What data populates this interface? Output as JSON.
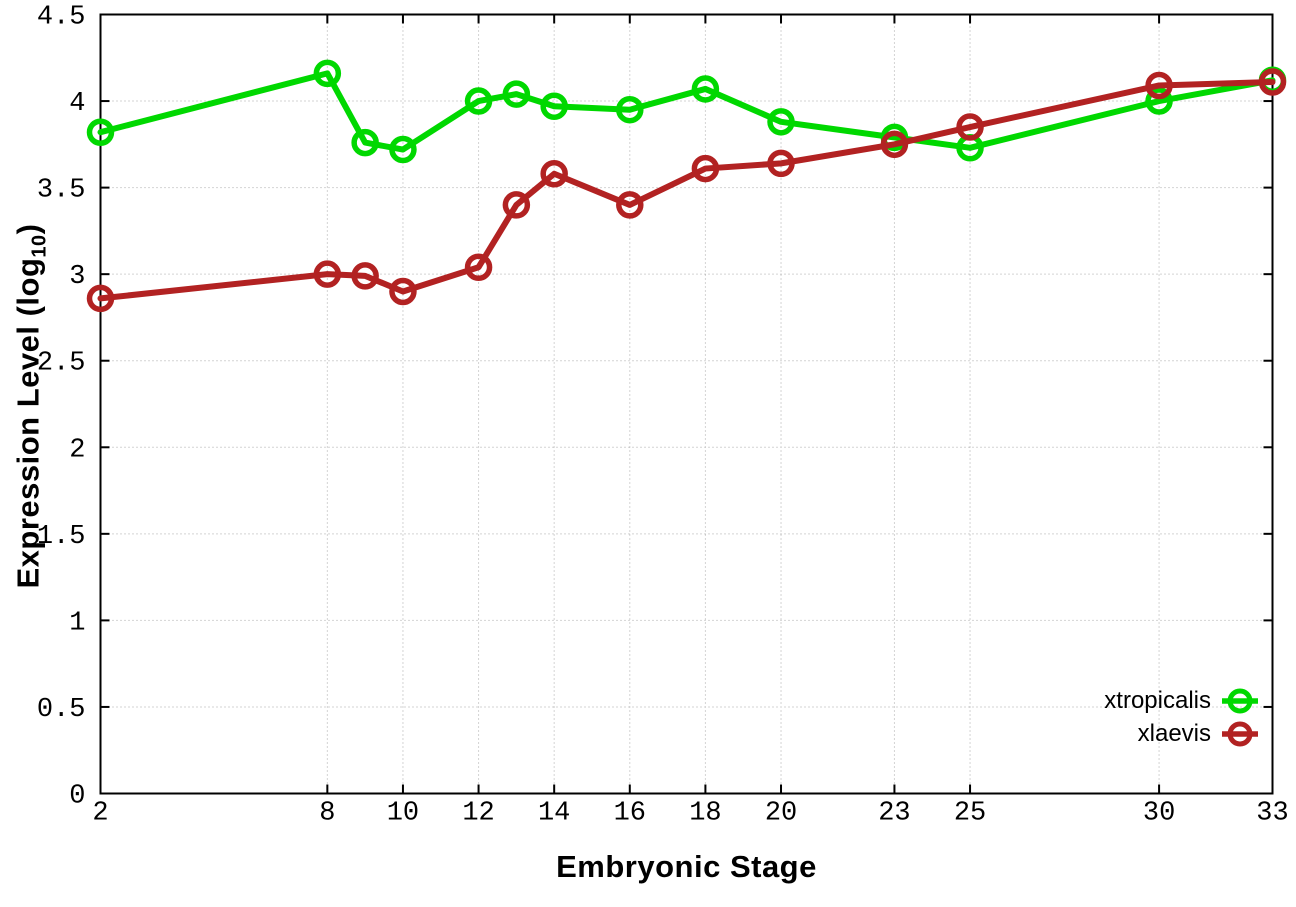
{
  "chart_data": {
    "type": "line",
    "title": "",
    "xlabel": "Embryonic Stage",
    "ylabel_prefix": "Expression Level (log",
    "ylabel_sub": "10",
    "ylabel_suffix": ")",
    "xlim": [
      2,
      33
    ],
    "ylim": [
      0,
      4.5
    ],
    "grid": true,
    "legend_position": "bottom-right",
    "x_ticks": [
      2,
      8,
      10,
      12,
      14,
      16,
      18,
      20,
      23,
      25,
      30,
      33
    ],
    "y_ticks": [
      0,
      0.5,
      1,
      1.5,
      2,
      2.5,
      3,
      3.5,
      4,
      4.5
    ],
    "x": [
      2,
      8,
      9,
      10,
      12,
      13,
      14,
      16,
      18,
      20,
      23,
      25,
      30,
      33
    ],
    "series": [
      {
        "name": "xtropicalis",
        "color": "#00d800",
        "values": [
          3.82,
          4.16,
          3.76,
          3.72,
          4.0,
          4.04,
          3.97,
          3.95,
          4.07,
          3.88,
          3.79,
          3.73,
          4.0,
          4.12
        ]
      },
      {
        "name": "xlaevis",
        "color": "#b22222",
        "values": [
          2.86,
          3.0,
          2.99,
          2.9,
          3.04,
          3.4,
          3.58,
          3.4,
          3.61,
          3.64,
          3.75,
          3.85,
          4.09,
          4.11
        ]
      }
    ]
  }
}
